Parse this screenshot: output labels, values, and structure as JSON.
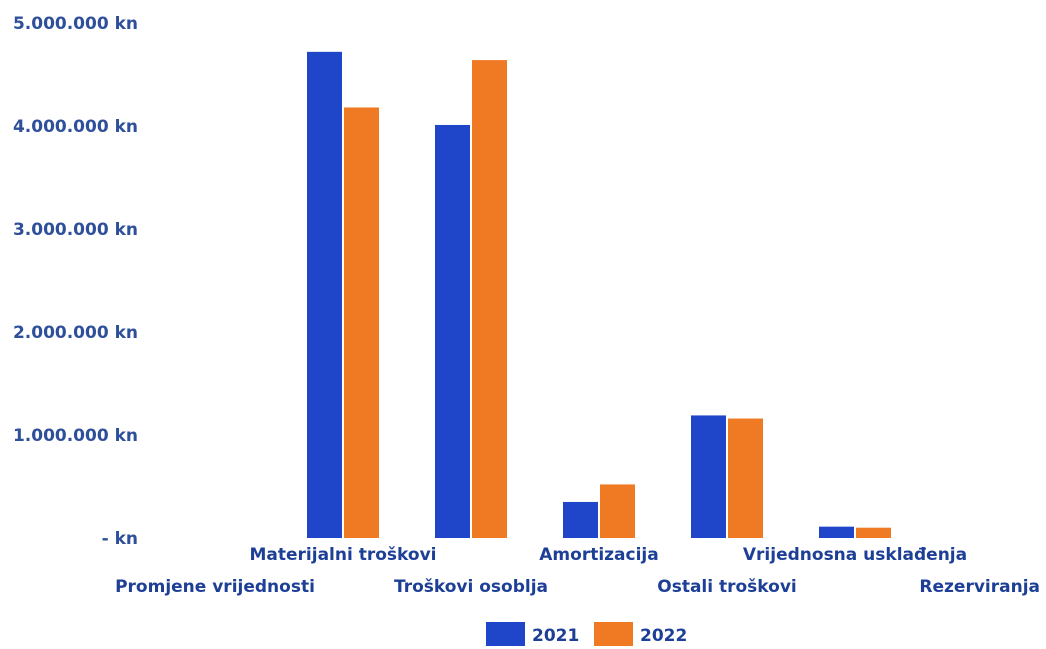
{
  "chart_data": {
    "type": "bar",
    "categories": [
      "Promjene vrijednosti",
      "Materijalni troškovi",
      "Troškovi osoblja",
      "Amortizacija",
      "Ostali troškovi",
      "Vrijednosna usklađenja",
      "Rezerviranja"
    ],
    "series": [
      {
        "name": "2021",
        "color": "#1f45c8",
        "values": [
          0,
          4720000,
          4010000,
          350000,
          1190000,
          110000,
          0
        ]
      },
      {
        "name": "2022",
        "color": "#f07a24",
        "values": [
          0,
          4180000,
          4640000,
          520000,
          1160000,
          100000,
          0
        ]
      }
    ],
    "ylim": [
      0,
      5000000
    ],
    "ytick_labels": [
      "- kn",
      "1.000.000 kn",
      "2.000.000 kn",
      "3.000.000 kn",
      "4.000.000 kn",
      "5.000.000 kn"
    ],
    "grid": false,
    "legend_position": "bottom"
  }
}
